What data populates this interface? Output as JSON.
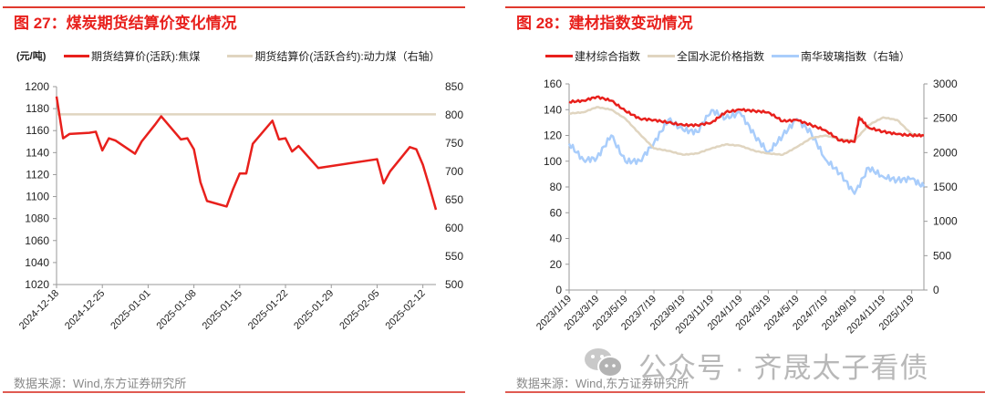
{
  "left_panel": {
    "title": "图 27：煤炭期货结算价变化情况",
    "unit_label": "(元/吨)",
    "legend": [
      {
        "label": "期货结算价(活跃):焦煤",
        "color": "#e8201c"
      },
      {
        "label": "期货结算价(活跃合约):动力煤（右轴）",
        "color": "#e0d5c0"
      }
    ],
    "source": "数据来源：Wind,东方证券研究所"
  },
  "right_panel": {
    "title": "图 28：建材指数变动情况",
    "legend": [
      {
        "label": "建材综合指数",
        "color": "#e8201c"
      },
      {
        "label": "全国水泥价格指数",
        "color": "#e0d5c0"
      },
      {
        "label": "南华玻璃指数（右轴）",
        "color": "#a9cdfb"
      }
    ],
    "source": "数据来源：Wind,东方证券研究所"
  },
  "watermark": {
    "text": "公众号 · 齐晟太子看债",
    "icon": "wechat-icon"
  },
  "chart_data": [
    {
      "type": "line",
      "title": "图 27：煤炭期货结算价变化情况",
      "ylabel": "(元/吨)",
      "ylim": [
        1020,
        1200
      ],
      "y2lim": [
        500,
        850
      ],
      "yticks": [
        1020,
        1040,
        1060,
        1080,
        1100,
        1120,
        1140,
        1160,
        1180,
        1200
      ],
      "y2ticks": [
        500,
        550,
        600,
        650,
        700,
        750,
        800,
        850
      ],
      "xticks": [
        "2024-12-18",
        "2024-12-25",
        "2025-01-01",
        "2025-01-08",
        "2025-01-15",
        "2025-01-22",
        "2025-01-29",
        "2025-02-05",
        "2025-02-12"
      ],
      "grid": false,
      "legend_position": "top",
      "series": [
        {
          "name": "期货结算价(活跃):焦煤",
          "axis": "left",
          "x": [
            "2024-12-18",
            "2024-12-19",
            "2024-12-20",
            "2024-12-23",
            "2024-12-24",
            "2024-12-25",
            "2024-12-26",
            "2024-12-27",
            "2024-12-30",
            "2024-12-31",
            "2025-01-02",
            "2025-01-03",
            "2025-01-06",
            "2025-01-07",
            "2025-01-08",
            "2025-01-09",
            "2025-01-10",
            "2025-01-13",
            "2025-01-14",
            "2025-01-15",
            "2025-01-16",
            "2025-01-17",
            "2025-01-20",
            "2025-01-21",
            "2025-01-22",
            "2025-01-23",
            "2025-01-24",
            "2025-01-27",
            "2025-02-05",
            "2025-02-06",
            "2025-02-07",
            "2025-02-10",
            "2025-02-11",
            "2025-02-12",
            "2025-02-13",
            "2025-02-14"
          ],
          "values": [
            1191,
            1153,
            1157,
            1158,
            1159,
            1142,
            1153,
            1151,
            1139,
            1150,
            1165,
            1173,
            1152,
            1153,
            1143,
            1113,
            1096,
            1091,
            1107,
            1121,
            1121,
            1148,
            1169,
            1152,
            1153,
            1141,
            1146,
            1126,
            1134,
            1112,
            1123,
            1145,
            1143,
            1129,
            1109,
            1088
          ]
        },
        {
          "name": "期货结算价(活跃合约):动力煤（右轴）",
          "axis": "right",
          "x": [
            "2024-12-18",
            "2025-02-14"
          ],
          "values": [
            801,
            801
          ]
        }
      ]
    },
    {
      "type": "line",
      "title": "图 28：建材指数变动情况",
      "ylim": [
        0,
        160
      ],
      "y2lim": [
        0,
        3000
      ],
      "yticks": [
        0,
        20,
        40,
        60,
        80,
        100,
        120,
        140,
        160
      ],
      "y2ticks": [
        0,
        500,
        1000,
        1500,
        2000,
        2500,
        3000
      ],
      "xticks": [
        "2023/1/19",
        "2023/3/19",
        "2023/5/19",
        "2023/7/19",
        "2023/9/19",
        "2023/11/19",
        "2024/1/19",
        "2024/3/19",
        "2024/5/19",
        "2024/7/19",
        "2024/9/19",
        "2024/11/19",
        "2025/1/19"
      ],
      "grid": false,
      "legend_position": "top",
      "series": [
        {
          "name": "建材综合指数",
          "axis": "left",
          "x": [
            "2023/1/19",
            "2023/2/19",
            "2023/3/19",
            "2023/4/19",
            "2023/5/19",
            "2023/6/19",
            "2023/7/19",
            "2023/8/19",
            "2023/9/19",
            "2023/10/19",
            "2023/11/19",
            "2023/12/19",
            "2024/1/19",
            "2024/2/19",
            "2024/3/19",
            "2024/4/19",
            "2024/5/19",
            "2024/6/19",
            "2024/7/19",
            "2024/8/19",
            "2024/9/19",
            "2024/9/29",
            "2024/10/19",
            "2024/11/19",
            "2024/12/19",
            "2025/1/19",
            "2025/2/14"
          ],
          "values": [
            146,
            147,
            150,
            147,
            139,
            133,
            132,
            130,
            128,
            128,
            130,
            138,
            140,
            139,
            138,
            131,
            132,
            128,
            124,
            116,
            115,
            134,
            126,
            123,
            121,
            120,
            120
          ]
        },
        {
          "name": "全国水泥价格指数",
          "axis": "left",
          "x": [
            "2023/1/19",
            "2023/2/19",
            "2023/3/19",
            "2023/4/19",
            "2023/5/19",
            "2023/6/19",
            "2023/7/19",
            "2023/8/19",
            "2023/9/19",
            "2023/10/19",
            "2023/11/19",
            "2023/12/19",
            "2024/1/19",
            "2024/2/19",
            "2024/3/19",
            "2024/4/19",
            "2024/5/19",
            "2024/6/19",
            "2024/7/19",
            "2024/8/19",
            "2024/9/19",
            "2024/10/19",
            "2024/11/19",
            "2024/12/19",
            "2025/1/19",
            "2025/2/14"
          ],
          "values": [
            137,
            138,
            142,
            140,
            133,
            121,
            110,
            108,
            105,
            106,
            110,
            113,
            112,
            108,
            106,
            105,
            111,
            118,
            120,
            117,
            116,
            128,
            134,
            132,
            121,
            120
          ]
        },
        {
          "name": "南华玻璃指数（右轴）",
          "axis": "right",
          "x": [
            "2023/1/19",
            "2023/2/19",
            "2023/3/19",
            "2023/4/19",
            "2023/5/19",
            "2023/6/19",
            "2023/7/19",
            "2023/8/19",
            "2023/9/19",
            "2023/10/19",
            "2023/11/19",
            "2023/12/19",
            "2024/1/19",
            "2024/2/19",
            "2024/3/19",
            "2024/4/19",
            "2024/5/19",
            "2024/6/19",
            "2024/7/19",
            "2024/8/19",
            "2024/9/19",
            "2024/10/19",
            "2024/11/19",
            "2024/12/19",
            "2025/1/19",
            "2025/2/14"
          ],
          "values": [
            2130,
            1890,
            1920,
            2250,
            1870,
            1880,
            2140,
            2480,
            2330,
            2300,
            2620,
            2500,
            2580,
            2250,
            2000,
            2250,
            2490,
            2280,
            1900,
            1700,
            1400,
            1780,
            1650,
            1600,
            1620,
            1500
          ]
        }
      ]
    }
  ]
}
